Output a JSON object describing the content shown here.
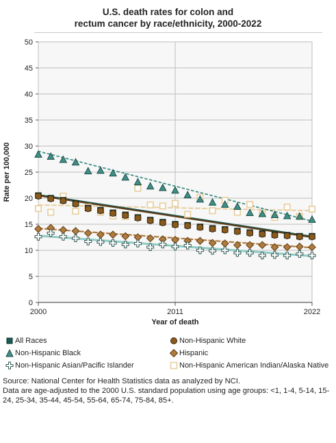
{
  "title_line1": "U.S. death rates for colon and",
  "title_line2": "rectum cancer by race/ethnicity, 2000-2022",
  "source_line1": "Source: National Center for Health Statistics data as analyzed by NCI.",
  "source_line2": "Data are age-adjusted to the 2000 U.S. standard population using age groups: <1, 1-4, 5-14, 15-24, 25-34, 35-44, 45-54, 55-64, 65-74, 75-84, 85+.",
  "chart_data": {
    "type": "scatter",
    "title": "U.S. death rates for colon and rectum cancer by race/ethnicity, 2000-2022",
    "xlabel": "Year of death",
    "ylabel": "Rate per 100,000",
    "xlim": [
      2000,
      2022
    ],
    "ylim": [
      0,
      50
    ],
    "x_ticks": [
      "2000",
      "2011",
      "2022"
    ],
    "y_ticks": [
      0,
      5,
      10,
      15,
      20,
      25,
      30,
      35,
      40,
      45,
      50
    ],
    "grid": true,
    "legend_position": "bottom",
    "x": [
      2000,
      2001,
      2002,
      2003,
      2004,
      2005,
      2006,
      2007,
      2008,
      2009,
      2010,
      2011,
      2012,
      2013,
      2014,
      2015,
      2016,
      2017,
      2018,
      2019,
      2020,
      2021,
      2022
    ],
    "series": [
      {
        "name": "All Races",
        "marker": "square",
        "color": "#1a5c56",
        "trend_color": "#1a5c56",
        "values": [
          20.5,
          20.0,
          19.6,
          19.0,
          18.1,
          17.7,
          17.2,
          16.8,
          16.3,
          15.8,
          15.4,
          15.0,
          14.8,
          14.5,
          14.2,
          14.0,
          13.7,
          13.4,
          13.2,
          13.0,
          12.9,
          12.7,
          12.7
        ],
        "trend": [
          20.6,
          12.6
        ]
      },
      {
        "name": "Non-Hispanic White",
        "marker": "circle",
        "color": "#8a5a1c",
        "trend_color": "#5a3b16",
        "values": [
          20.4,
          19.9,
          19.5,
          18.9,
          18.0,
          17.6,
          17.1,
          16.7,
          16.2,
          15.7,
          15.3,
          14.9,
          14.7,
          14.4,
          14.1,
          13.9,
          13.6,
          13.3,
          13.1,
          12.9,
          12.8,
          12.6,
          12.6
        ],
        "trend": [
          20.5,
          12.5
        ]
      },
      {
        "name": "Non-Hispanic Black",
        "marker": "triangle",
        "color": "#3f8f86",
        "trend_color": "#3f8f86",
        "values": [
          28.4,
          28.0,
          27.4,
          26.9,
          25.2,
          25.3,
          24.8,
          24.0,
          23.1,
          22.3,
          22.0,
          21.5,
          20.6,
          19.8,
          19.2,
          18.8,
          18.4,
          17.2,
          17.0,
          16.8,
          16.6,
          16.5,
          15.9
        ],
        "trend": [
          29.0,
          15.6
        ]
      },
      {
        "name": "Hispanic",
        "marker": "diamond",
        "color": "#b07b3e",
        "trend_color": "#b07b3e",
        "values": [
          14.1,
          14.3,
          13.9,
          13.7,
          13.3,
          13.0,
          13.0,
          12.7,
          12.5,
          12.3,
          12.1,
          12.0,
          11.8,
          11.8,
          11.4,
          11.3,
          11.0,
          11.0,
          11.0,
          10.6,
          10.6,
          10.7,
          10.6
        ],
        "trend": [
          14.2,
          10.5
        ]
      },
      {
        "name": "Non-Hispanic Asian/Pacific Islander",
        "marker": "cross",
        "color": "#2e5550",
        "trend_color": "#8fcbc3",
        "values": [
          12.6,
          13.3,
          12.6,
          12.3,
          11.7,
          11.6,
          11.4,
          11.1,
          11.3,
          10.6,
          11.1,
          10.7,
          10.9,
          10.0,
          9.9,
          10.0,
          9.5,
          9.5,
          9.0,
          9.1,
          9.0,
          9.3,
          9.0
        ],
        "trend": [
          12.8,
          8.9
        ]
      },
      {
        "name": "Non-Hispanic American Indian/Alaska Native",
        "marker": "open-square",
        "color": "#e7cf9f",
        "trend_color": "#e7cf9f",
        "values": [
          18.0,
          17.3,
          20.4,
          17.5,
          18.3,
          17.3,
          16.6,
          16.5,
          21.9,
          18.7,
          18.5,
          19.0,
          16.9,
          20.2,
          17.6,
          19.6,
          17.3,
          18.8,
          17.1,
          16.3,
          18.3,
          16.5,
          17.9
        ],
        "trend": [
          18.7,
          17.6
        ]
      }
    ]
  }
}
